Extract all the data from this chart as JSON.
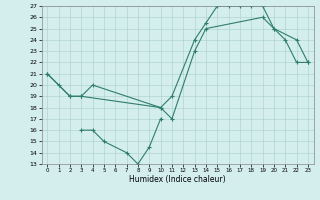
{
  "xlabel": "Humidex (Indice chaleur)",
  "xlim": [
    -0.5,
    23.5
  ],
  "ylim": [
    13,
    27
  ],
  "xticks": [
    0,
    1,
    2,
    3,
    4,
    5,
    6,
    7,
    8,
    9,
    10,
    11,
    12,
    13,
    14,
    15,
    16,
    17,
    18,
    19,
    20,
    21,
    22,
    23
  ],
  "yticks": [
    13,
    14,
    15,
    16,
    17,
    18,
    19,
    20,
    21,
    22,
    23,
    24,
    25,
    26,
    27
  ],
  "line_color": "#2e7d6e",
  "bg_color": "#d4eeee",
  "series": [
    {
      "x": [
        0,
        1,
        2,
        3,
        4,
        10,
        11,
        13,
        14,
        15,
        16,
        17,
        18,
        19,
        20,
        21,
        22,
        23
      ],
      "y": [
        21,
        20,
        19,
        19,
        20,
        18,
        19,
        24,
        25.5,
        27,
        27,
        27,
        27,
        27,
        25,
        24,
        22,
        22
      ]
    },
    {
      "x": [
        0,
        2,
        3,
        10,
        11,
        13,
        14,
        19,
        20,
        22,
        23
      ],
      "y": [
        21,
        19,
        19,
        18,
        17,
        23,
        25,
        26,
        25,
        24,
        22
      ]
    },
    {
      "x": [
        3,
        4,
        5,
        7,
        8,
        9,
        10
      ],
      "y": [
        16,
        16,
        15,
        14,
        13,
        14.5,
        17
      ]
    }
  ]
}
